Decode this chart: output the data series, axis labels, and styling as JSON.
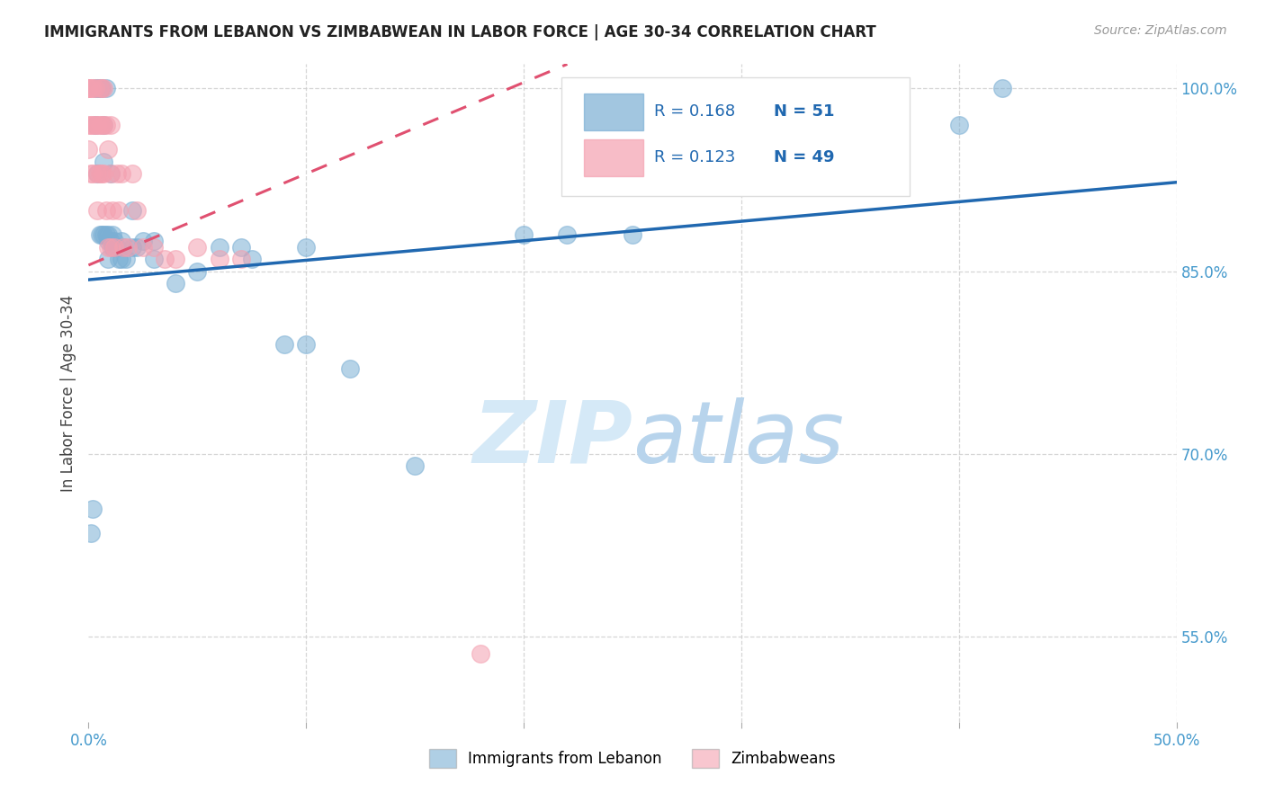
{
  "title": "IMMIGRANTS FROM LEBANON VS ZIMBABWEAN IN LABOR FORCE | AGE 30-34 CORRELATION CHART",
  "source": "Source: ZipAtlas.com",
  "xlabel": "",
  "ylabel": "In Labor Force | Age 30-34",
  "xlim": [
    0.0,
    0.5
  ],
  "ylim": [
    0.48,
    1.02
  ],
  "x_ticks": [
    0.0,
    0.1,
    0.2,
    0.3,
    0.4,
    0.5
  ],
  "x_tick_labels": [
    "0.0%",
    "",
    "",
    "",
    "",
    "50.0%"
  ],
  "y_tick_labels_right": [
    "100.0%",
    "85.0%",
    "70.0%",
    "55.0%"
  ],
  "y_ticks_right": [
    1.0,
    0.85,
    0.7,
    0.55
  ],
  "lebanon_color": "#7bafd4",
  "zimbabwe_color": "#f4a0b0",
  "lebanon_R": 0.168,
  "lebanon_N": 51,
  "zimbabwe_R": 0.123,
  "zimbabwe_N": 49,
  "legend_label_1": "Immigrants from Lebanon",
  "legend_label_2": "Zimbabweans",
  "watermark": "ZIPatlas",
  "lebanon_x": [
    0.001,
    0.002,
    0.003,
    0.003,
    0.004,
    0.004,
    0.005,
    0.005,
    0.006,
    0.006,
    0.007,
    0.007,
    0.007,
    0.008,
    0.008,
    0.009,
    0.009,
    0.009,
    0.01,
    0.01,
    0.011,
    0.011,
    0.012,
    0.012,
    0.013,
    0.014,
    0.015,
    0.015,
    0.016,
    0.017,
    0.02,
    0.02,
    0.022,
    0.025,
    0.03,
    0.03,
    0.04,
    0.05,
    0.06,
    0.07,
    0.075,
    0.09,
    0.1,
    0.1,
    0.12,
    0.15,
    0.2,
    0.22,
    0.25,
    0.4,
    0.42
  ],
  "lebanon_y": [
    0.635,
    0.655,
    1.0,
    0.97,
    1.0,
    0.93,
    1.0,
    0.88,
    1.0,
    0.88,
    0.97,
    0.94,
    0.88,
    1.0,
    0.88,
    0.88,
    0.875,
    0.86,
    0.93,
    0.875,
    0.88,
    0.87,
    0.875,
    0.87,
    0.87,
    0.86,
    0.875,
    0.86,
    0.87,
    0.86,
    0.9,
    0.87,
    0.87,
    0.875,
    0.875,
    0.86,
    0.84,
    0.85,
    0.87,
    0.87,
    0.86,
    0.79,
    0.79,
    0.87,
    0.77,
    0.69,
    0.88,
    0.88,
    0.88,
    0.97,
    1.0
  ],
  "zimbabwe_x": [
    0.0,
    0.0,
    0.0,
    0.0,
    0.0,
    0.001,
    0.001,
    0.001,
    0.002,
    0.002,
    0.002,
    0.003,
    0.003,
    0.004,
    0.004,
    0.004,
    0.005,
    0.005,
    0.005,
    0.006,
    0.006,
    0.006,
    0.007,
    0.007,
    0.007,
    0.008,
    0.008,
    0.009,
    0.009,
    0.01,
    0.01,
    0.01,
    0.011,
    0.012,
    0.013,
    0.014,
    0.015,
    0.016,
    0.018,
    0.02,
    0.022,
    0.025,
    0.03,
    0.035,
    0.04,
    0.05,
    0.06,
    0.07,
    0.18
  ],
  "zimbabwe_y": [
    1.0,
    1.0,
    1.0,
    0.97,
    0.95,
    1.0,
    0.97,
    0.93,
    1.0,
    0.97,
    0.93,
    1.0,
    0.97,
    0.97,
    0.93,
    0.9,
    1.0,
    0.97,
    0.93,
    1.0,
    0.97,
    0.93,
    1.0,
    0.97,
    0.93,
    0.97,
    0.9,
    0.95,
    0.87,
    0.97,
    0.93,
    0.87,
    0.9,
    0.87,
    0.93,
    0.9,
    0.93,
    0.87,
    0.87,
    0.93,
    0.9,
    0.87,
    0.87,
    0.86,
    0.86,
    0.87,
    0.86,
    0.86,
    0.536
  ],
  "lebanon_trendline_x": [
    0.001,
    0.42
  ],
  "lebanon_trendline_y": [
    0.845,
    0.925
  ],
  "zimbabwe_trendline_x": [
    0.0,
    0.18
  ],
  "zimbabwe_trendline_y": [
    0.86,
    0.97
  ]
}
